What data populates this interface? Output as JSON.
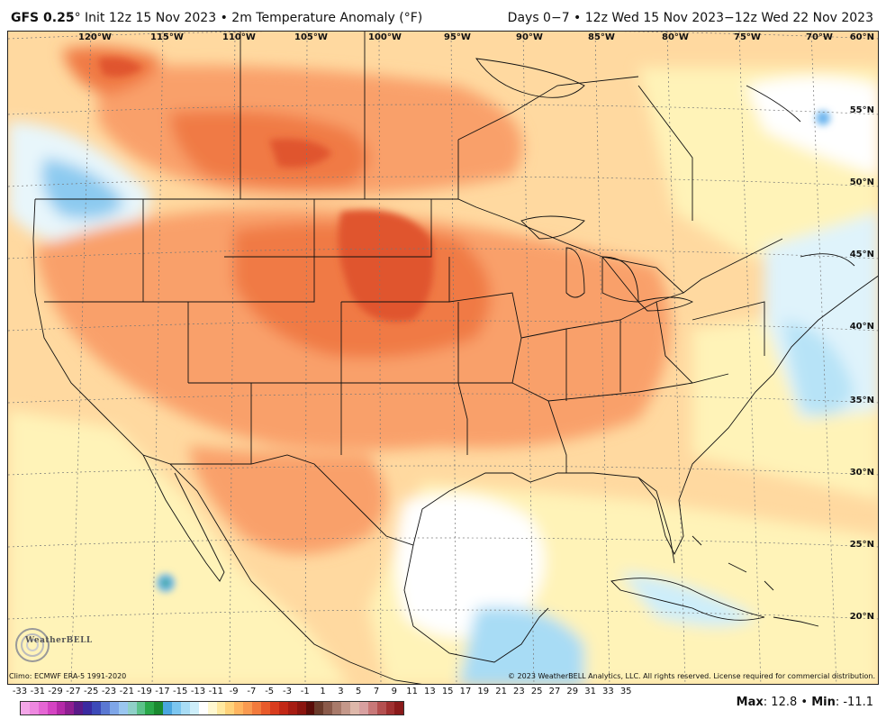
{
  "header": {
    "model": "GFS 0.25",
    "model_suffix": "° Init 12z 15 Nov 2023 • 2m Temperature Anomaly (°F)",
    "period": "Days 0−7 • 12z Wed 15 Nov 2023−12z Wed 22 Nov 2023"
  },
  "map": {
    "lon_labels": [
      "120°W",
      "115°W",
      "110°W",
      "105°W",
      "100°W",
      "95°W",
      "90°W",
      "85°W",
      "80°W",
      "75°W",
      "70°W"
    ],
    "lat_labels": [
      "60°N",
      "55°N",
      "50°N",
      "45°N",
      "40°N",
      "35°N",
      "30°N",
      "25°N",
      "20°N"
    ],
    "logo_text": "WeatherBELL",
    "colors": {
      "background_warm": "#ffd9a0",
      "orange": "#f9a06a",
      "red_orange": "#f07a45",
      "deep_red": "#e0552e",
      "pale_yellow": "#fff3b8",
      "white": "#ffffff",
      "light_blue": "#b7e3f7",
      "blue": "#6ab4ee"
    }
  },
  "footer": {
    "climo": "Climo: ECMWF ERA-5 1991-2020",
    "copyright": "© 2023 WeatherBELL Analytics, LLC. All rights reserved. License required for commercial distribution.",
    "max_label": "Max",
    "max_value": ": 12.8 •",
    "min_label": "Min",
    "min_value": ": -11.1"
  },
  "legend": {
    "ticks": [
      "-33",
      "-31",
      "-29",
      "-27",
      "-25",
      "-23",
      "-21",
      "-19",
      "-17",
      "-15",
      "-13",
      "-11",
      "-9",
      "-7",
      "-5",
      "-3",
      "-1",
      "1",
      "3",
      "5",
      "7",
      "9",
      "11",
      "13",
      "15",
      "17",
      "19",
      "21",
      "23",
      "25",
      "27",
      "29",
      "31",
      "33",
      "35"
    ],
    "colors": [
      "#f3a6e8",
      "#ee88e0",
      "#e566d4",
      "#d444c2",
      "#b52aa8",
      "#8e1e90",
      "#5a1a88",
      "#3a2aa0",
      "#3c4ab8",
      "#5a78d2",
      "#7ea6e8",
      "#9ac6f0",
      "#8fd0c8",
      "#5cc28a",
      "#2aa84a",
      "#1a8a30",
      "#4aa6e0",
      "#7cc6f0",
      "#a8dcf5",
      "#cdeefa",
      "#ffffff",
      "#fff8d0",
      "#ffe9a0",
      "#ffd27a",
      "#ffb560",
      "#f99a50",
      "#f27a3c",
      "#e85a2a",
      "#d83c1e",
      "#c22816",
      "#a61c12",
      "#8a140e",
      "#5a0c08",
      "#6a3a2a",
      "#8a5a4a",
      "#a87a6a",
      "#c4988a",
      "#deb8aa",
      "#d8a0a0",
      "#c87878",
      "#b45050",
      "#a03030",
      "#8a1a1a"
    ]
  }
}
